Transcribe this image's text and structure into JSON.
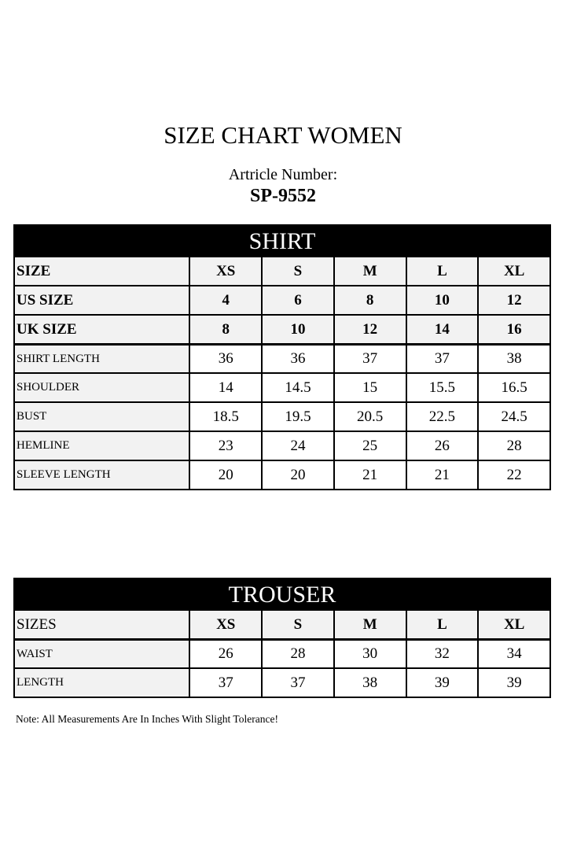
{
  "title": "SIZE CHART WOMEN",
  "article_label": "Artricle Number:",
  "article_number": "SP-9552",
  "shirt": {
    "heading": "SHIRT",
    "rows": [
      {
        "label": "SIZE",
        "values": [
          "XS",
          "S",
          "M",
          "L",
          "XL"
        ],
        "bold": true
      },
      {
        "label": "US SIZE",
        "values": [
          "4",
          "6",
          "8",
          "10",
          "12"
        ],
        "bold": true
      },
      {
        "label": "UK SIZE",
        "values": [
          "8",
          "10",
          "12",
          "14",
          "16"
        ],
        "bold": true
      },
      {
        "label": "SHIRT LENGTH",
        "values": [
          "36",
          "36",
          "37",
          "37",
          "38"
        ]
      },
      {
        "label": "SHOULDER",
        "values": [
          "14",
          "14.5",
          "15",
          "15.5",
          "16.5"
        ]
      },
      {
        "label": "BUST",
        "values": [
          "18.5",
          "19.5",
          "20.5",
          "22.5",
          "24.5"
        ]
      },
      {
        "label": "HEMLINE",
        "values": [
          "23",
          "24",
          "25",
          "26",
          "28"
        ]
      },
      {
        "label": "SLEEVE LENGTH",
        "values": [
          "20",
          "20",
          "21",
          "21",
          "22"
        ]
      }
    ]
  },
  "trouser": {
    "heading": "TROUSER",
    "rows": [
      {
        "label": "SIZES",
        "values": [
          "XS",
          "S",
          "M",
          "L",
          "XL"
        ],
        "bold": true,
        "plain_label": true
      },
      {
        "label": "WAIST",
        "values": [
          "26",
          "28",
          "30",
          "32",
          "34"
        ]
      },
      {
        "label": "LENGTH",
        "values": [
          "37",
          "37",
          "38",
          "39",
          "39"
        ]
      }
    ]
  },
  "note": "Note: All Measurements Are In Inches With Slight Tolerance!"
}
